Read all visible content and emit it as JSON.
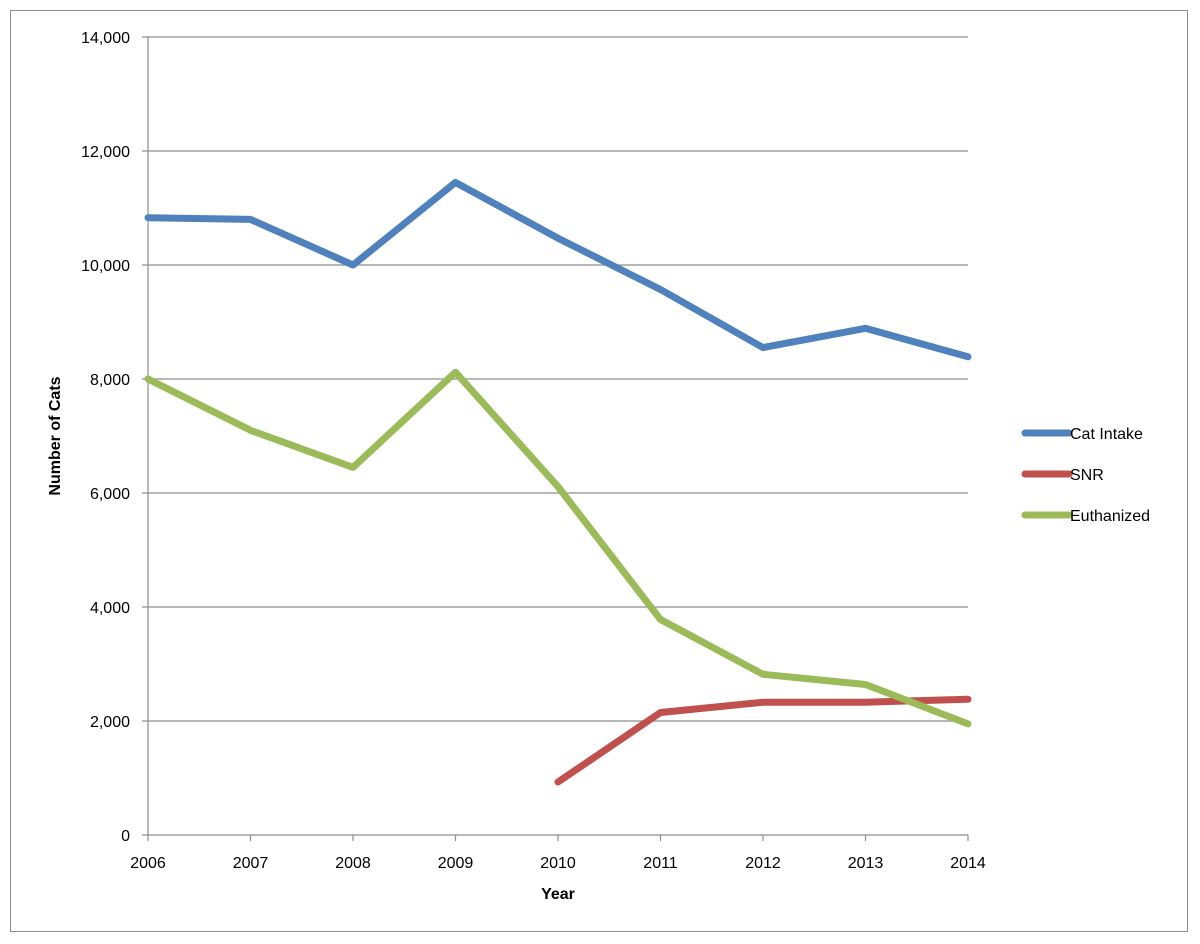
{
  "chart_data": {
    "type": "line",
    "title": "",
    "xlabel": "Year",
    "ylabel": "Number of Cats",
    "x": [
      2006,
      2007,
      2008,
      2009,
      2010,
      2011,
      2012,
      2013,
      2014
    ],
    "ylim": [
      0,
      14000
    ],
    "yticks": [
      0,
      2000,
      4000,
      6000,
      8000,
      10000,
      12000,
      14000
    ],
    "ytick_labels": [
      "0",
      "2,000",
      "4,000",
      "6,000",
      "8,000",
      "10,000",
      "12,000",
      "14,000"
    ],
    "xtick_labels": [
      "2006",
      "2007",
      "2008",
      "2009",
      "2010",
      "2011",
      "2012",
      "2013",
      "2014"
    ],
    "grid": "horizontal",
    "legend_position": "right",
    "series": [
      {
        "name": "Cat Intake",
        "color": "#4f81bd",
        "values": [
          10830,
          10800,
          10000,
          11450,
          10470,
          9570,
          8550,
          8890,
          8390
        ]
      },
      {
        "name": "SNR",
        "color": "#c0504d",
        "values": [
          null,
          null,
          null,
          null,
          930,
          2150,
          2330,
          2330,
          2380
        ]
      },
      {
        "name": "Euthanized",
        "color": "#9bbb59",
        "values": [
          8000,
          7100,
          6450,
          8120,
          6110,
          3780,
          2820,
          2640,
          1950
        ]
      }
    ]
  }
}
